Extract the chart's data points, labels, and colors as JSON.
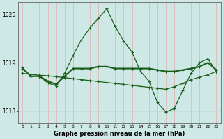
{
  "hours": [
    0,
    1,
    2,
    3,
    4,
    5,
    6,
    7,
    8,
    9,
    10,
    11,
    12,
    13,
    14,
    15,
    16,
    17,
    18,
    19,
    20,
    21,
    22,
    23
  ],
  "line_peak": [
    1018.9,
    1018.72,
    1018.72,
    1018.58,
    1018.52,
    1018.78,
    1019.15,
    1019.48,
    1019.72,
    1019.92,
    1020.12,
    1019.75,
    1019.45,
    1019.22,
    1018.82,
    1018.62,
    1018.18,
    1017.98,
    1018.05,
    1018.42,
    1018.78,
    1019.0,
    1019.08,
    1018.82
  ],
  "line_mid": [
    1018.88,
    1018.72,
    1018.72,
    1018.62,
    1018.55,
    1018.72,
    1018.88,
    1018.88,
    1018.88,
    1018.92,
    1018.92,
    1018.88,
    1018.88,
    1018.88,
    1018.88,
    1018.88,
    1018.85,
    1018.82,
    1018.82,
    1018.85,
    1018.88,
    1018.92,
    1019.0,
    1018.85
  ],
  "line_trend": [
    1018.78,
    1018.76,
    1018.74,
    1018.73,
    1018.71,
    1018.69,
    1018.67,
    1018.65,
    1018.63,
    1018.61,
    1018.59,
    1018.57,
    1018.55,
    1018.53,
    1018.51,
    1018.49,
    1018.47,
    1018.45,
    1018.5,
    1018.57,
    1018.65,
    1018.7,
    1018.75,
    1018.82
  ],
  "line_color": "#1a5c1a",
  "bg_color": "#cde8e5",
  "grid_h_color": "#c8d8d8",
  "grid_v_color": "#e0b8b8",
  "xlabel": "Graphe pression niveau de la mer (hPa)",
  "ylim": [
    1017.75,
    1020.25
  ],
  "yticks": [
    1018,
    1019,
    1020
  ],
  "xlim": [
    -0.5,
    23.5
  ]
}
